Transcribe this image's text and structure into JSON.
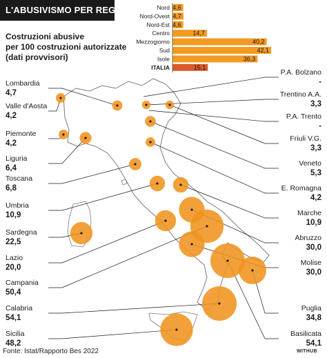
{
  "header": {
    "title": "L'ABUSIVISMO PER REGIONI",
    "subtitle": "Costruzioni abusive\nper 100 costruzioni autorizzate\n(dati provvisori)"
  },
  "footer": {
    "source": "Fonte: Istat/Rapporto Bes 2022",
    "brand": "WITHUB"
  },
  "colors": {
    "bar": "#f29a22",
    "bar_italia": "#d95a2a",
    "bubble": "#f0931e",
    "bubble_highlight": "#e0522a",
    "map_stroke": "#7a7a7a"
  },
  "chart_data": [
    {
      "type": "bar",
      "orientation": "horizontal",
      "categories": [
        "Nord",
        "Nord-Ovest",
        "Nord-Est",
        "Centro",
        "Mezzogiorno",
        "Sud",
        "Isole",
        "ITALIA"
      ],
      "values": [
        4.6,
        4.7,
        4.6,
        14.7,
        40.2,
        42.1,
        36.3,
        15.1
      ],
      "value_labels": [
        "4,6",
        "4,7",
        "4,6",
        "14,7",
        "40,2",
        "42,1",
        "36,3",
        "15,1"
      ],
      "highlight": "ITALIA"
    },
    {
      "type": "scatter",
      "subtype": "proportional-symbol-map",
      "regions": [
        {
          "name": "Lombardia",
          "value": 4.7,
          "label": "4,7"
        },
        {
          "name": "Valle d'Aosta",
          "value": 4.2,
          "label": "4,2"
        },
        {
          "name": "Piemonte",
          "value": 4.2,
          "label": "4,2"
        },
        {
          "name": "Liguria",
          "value": 6.4,
          "label": "6,4"
        },
        {
          "name": "Toscana",
          "value": 6.8,
          "label": "6,8"
        },
        {
          "name": "Umbria",
          "value": 10.9,
          "label": "10,9"
        },
        {
          "name": "Sardegna",
          "value": 22.5,
          "label": "22,5"
        },
        {
          "name": "Lazio",
          "value": 20.0,
          "label": "20,0"
        },
        {
          "name": "Campania",
          "value": 50.4,
          "label": "50,4"
        },
        {
          "name": "Calabria",
          "value": 54.1,
          "label": "54,1"
        },
        {
          "name": "Sicilia",
          "value": 48.2,
          "label": "48,2"
        },
        {
          "name": "P.A. Bolzano",
          "value": null,
          "label": "-"
        },
        {
          "name": "Trentino A.A.",
          "value": 3.3,
          "label": "3,3"
        },
        {
          "name": "P.A. Trento",
          "value": null,
          "label": "-"
        },
        {
          "name": "Friuli V.G.",
          "value": 3.3,
          "label": "3,3"
        },
        {
          "name": "Veneto",
          "value": 5.3,
          "label": "5,3"
        },
        {
          "name": "E. Romagna",
          "value": 4.2,
          "label": "4,2"
        },
        {
          "name": "Marche",
          "value": 10.9,
          "label": "10,9"
        },
        {
          "name": "Abruzzo",
          "value": 30.0,
          "label": "30,0"
        },
        {
          "name": "Molise",
          "value": 30.0,
          "label": "30,0"
        },
        {
          "name": "Puglia",
          "value": 34.8,
          "label": "34,8"
        },
        {
          "name": "Basilicata",
          "value": 54.1,
          "label": "54,1"
        }
      ]
    }
  ]
}
